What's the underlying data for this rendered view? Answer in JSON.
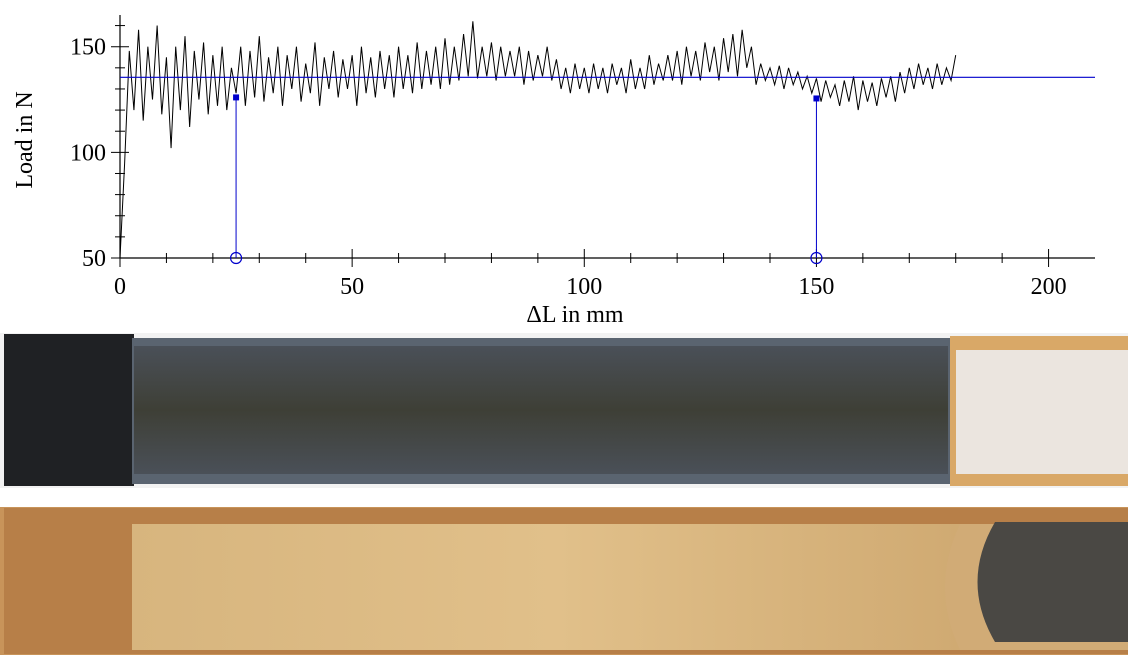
{
  "chart_data": {
    "type": "line",
    "x_label": "ΔL in mm",
    "y_label": "Load in N",
    "xlim": [
      0,
      210
    ],
    "ylim": [
      50,
      165
    ],
    "xticks": [
      0,
      50,
      100,
      150,
      200
    ],
    "yticks": [
      50,
      100,
      150
    ],
    "xminorticks": [
      10,
      20,
      30,
      40,
      60,
      70,
      80,
      90,
      110,
      120,
      130,
      140,
      160,
      170,
      180,
      190
    ],
    "yminorticks": [
      60,
      70,
      80,
      90,
      110,
      120,
      130,
      140,
      160
    ],
    "reference_line": {
      "y": 135.5,
      "color": "#0000cc"
    },
    "markers": [
      {
        "x": 25,
        "y": 126,
        "color": "#0000cc"
      },
      {
        "x": 150,
        "y": 125.5,
        "color": "#0000cc"
      }
    ],
    "x": [
      0,
      1,
      2,
      3,
      4,
      5,
      6,
      7,
      8,
      9,
      10,
      11,
      12,
      13,
      14,
      15,
      16,
      17,
      18,
      19,
      20,
      21,
      22,
      23,
      24,
      25,
      26,
      27,
      28,
      29,
      30,
      31,
      32,
      33,
      34,
      35,
      36,
      37,
      38,
      39,
      40,
      41,
      42,
      43,
      44,
      45,
      46,
      47,
      48,
      49,
      50,
      51,
      52,
      53,
      54,
      55,
      56,
      57,
      58,
      59,
      60,
      61,
      62,
      63,
      64,
      65,
      66,
      67,
      68,
      69,
      70,
      71,
      72,
      73,
      74,
      75,
      76,
      77,
      78,
      79,
      80,
      81,
      82,
      83,
      84,
      85,
      86,
      87,
      88,
      89,
      90,
      91,
      92,
      93,
      94,
      95,
      96,
      97,
      98,
      99,
      100,
      101,
      102,
      103,
      104,
      105,
      106,
      107,
      108,
      109,
      110,
      111,
      112,
      113,
      114,
      115,
      116,
      117,
      118,
      119,
      120,
      121,
      122,
      123,
      124,
      125,
      126,
      127,
      128,
      129,
      130,
      131,
      132,
      133,
      134,
      135,
      136,
      137,
      138,
      139,
      140,
      141,
      142,
      143,
      144,
      145,
      146,
      147,
      148,
      149,
      150,
      151,
      152,
      153,
      154,
      155,
      156,
      157,
      158,
      159,
      160,
      161,
      162,
      163,
      164,
      165,
      166,
      167,
      168,
      169,
      170,
      171,
      172,
      173,
      174,
      175,
      176,
      177,
      178,
      179,
      180
    ],
    "series": [
      {
        "color": "#000000",
        "values": [
          50,
          95,
          148,
          120,
          158,
          115,
          150,
          125,
          160,
          118,
          145,
          102,
          150,
          120,
          155,
          112,
          148,
          125,
          152,
          118,
          146,
          122,
          150,
          120,
          140,
          128,
          150,
          122,
          148,
          126,
          155,
          124,
          145,
          128,
          150,
          122,
          146,
          130,
          150,
          124,
          142,
          128,
          152,
          122,
          145,
          130,
          148,
          126,
          144,
          130,
          146,
          122,
          150,
          128,
          145,
          126,
          148,
          130,
          146,
          126,
          150,
          130,
          146,
          128,
          152,
          130,
          148,
          132,
          150,
          130,
          154,
          132,
          150,
          134,
          156,
          136,
          162,
          135,
          150,
          136,
          152,
          134,
          150,
          136,
          148,
          136,
          150,
          132,
          148,
          134,
          146,
          136,
          150,
          134,
          144,
          130,
          140,
          128,
          142,
          130,
          140,
          128,
          142,
          130,
          140,
          128,
          142,
          132,
          140,
          128,
          144,
          130,
          140,
          130,
          146,
          132,
          142,
          134,
          146,
          134,
          148,
          132,
          150,
          136,
          148,
          134,
          152,
          138,
          150,
          134,
          154,
          138,
          156,
          136,
          158,
          140,
          150,
          132,
          142,
          134,
          140,
          132,
          141,
          130,
          140,
          132,
          138,
          130,
          136,
          128,
          135,
          124,
          134,
          126,
          132,
          122,
          134,
          124,
          136,
          120,
          134,
          124,
          133,
          122,
          135,
          126,
          136,
          124,
          138,
          128,
          140,
          130,
          142,
          132,
          140,
          130,
          142,
          132,
          140,
          134,
          146
        ]
      }
    ]
  }
}
